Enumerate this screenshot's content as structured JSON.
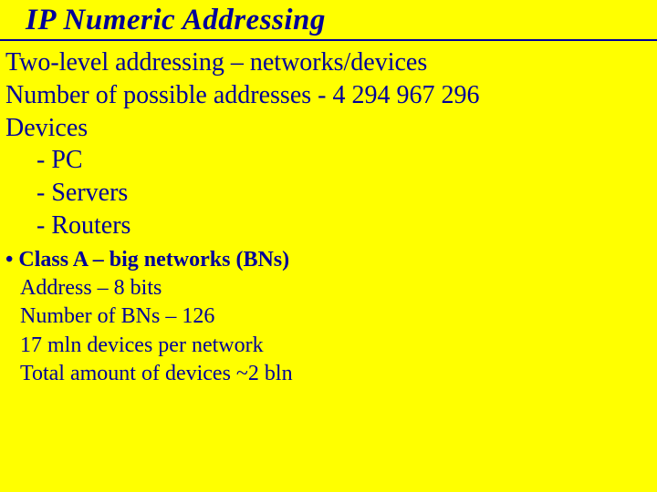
{
  "title": "IP Numeric Addressing",
  "intro": {
    "line1": "Two-level addressing – networks/devices",
    "line2": "Number of possible addresses - 4 294 967 296",
    "line3": "Devices",
    "dev1": "- PC",
    "dev2": "- Servers",
    "dev3": "- Routers"
  },
  "classA": {
    "heading": "• Class A – big networks (BNs)",
    "l1": "Address – 8 bits",
    "l2": "Number of BNs – 126",
    "l3": "17 mln devices per network",
    "l4": "Total amount of devices ~2 bln"
  },
  "colors": {
    "background": "#ffff00",
    "text": "#000099",
    "underline": "#000099"
  },
  "typography": {
    "title_fontsize": 33,
    "title_weight": "bold",
    "title_style": "italic",
    "body_large_fontsize": 28,
    "body_medium_fontsize": 24,
    "font_family": "Times New Roman"
  }
}
